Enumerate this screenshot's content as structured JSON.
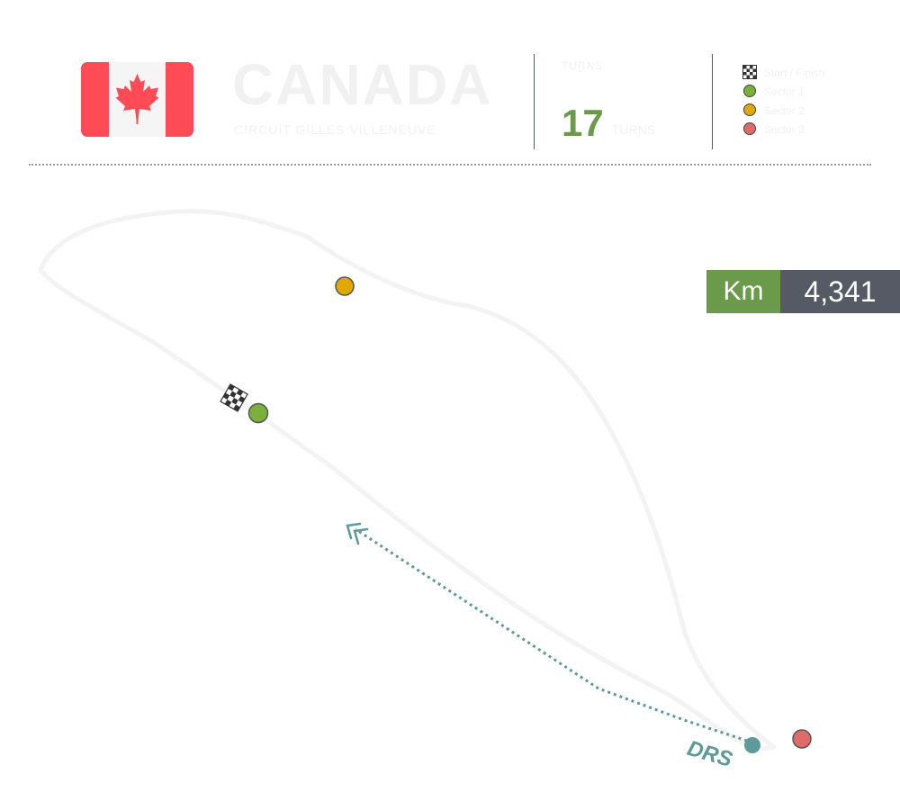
{
  "header": {
    "country_title": "CANADA",
    "subtitle": "CIRCUIT GILLES VILLENEUVE",
    "turns_label": "TURNS",
    "turns_value": "17",
    "turns_unit": "TURNS"
  },
  "legend": {
    "items": [
      {
        "icon": "checkered-flag-icon",
        "label": "Start / Finish"
      },
      {
        "icon": "green-dot-icon",
        "label": "Sector 1",
        "color": "#7ab03c"
      },
      {
        "icon": "yellow-dot-icon",
        "label": "Sector 2",
        "color": "#e0a800"
      },
      {
        "icon": "red-dot-icon",
        "label": "Sector 3",
        "color": "#e06b6b"
      }
    ]
  },
  "length_badge": {
    "unit": "Km",
    "value": "4,341"
  },
  "drs": {
    "label": "DRS",
    "color": "#5e9a9a"
  },
  "colors": {
    "flag_red": "#ff4b55",
    "accent_green": "#6a9a4a",
    "badge_dark": "#555a64"
  }
}
